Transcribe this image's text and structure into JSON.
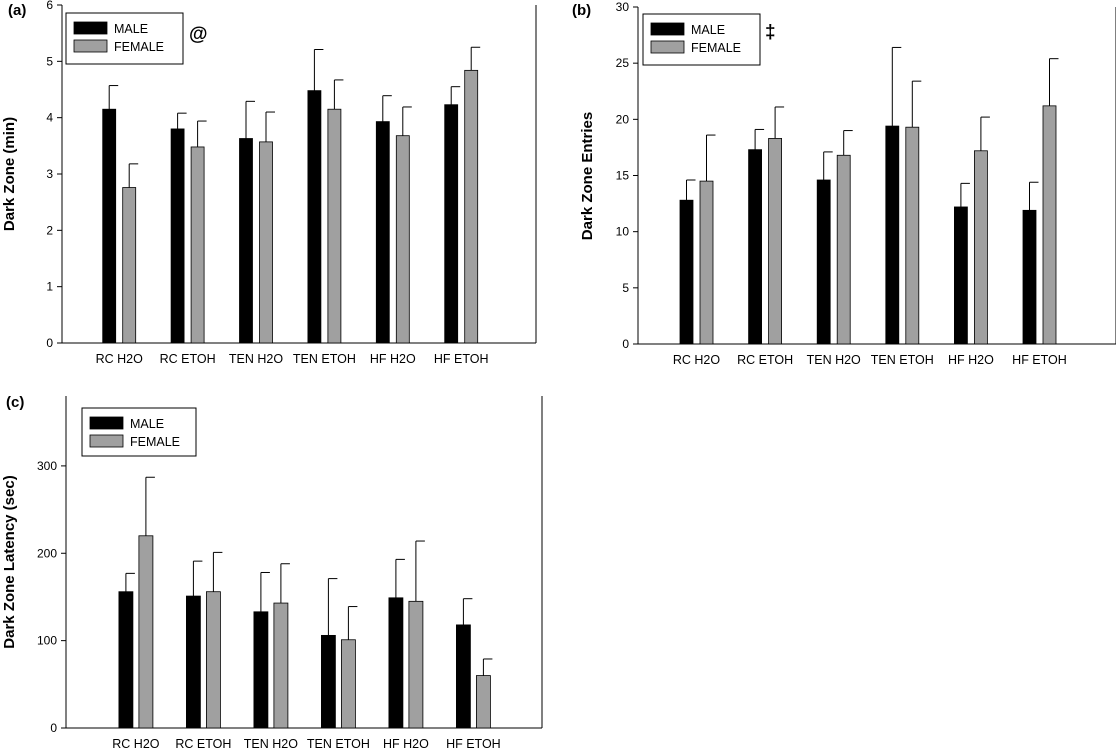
{
  "chart_data": [
    {
      "type": "bar",
      "panel_label": "(a)",
      "ylabel": "Dark Zone (min)",
      "ylim": [
        0,
        6
      ],
      "yticks": [
        0,
        1,
        2,
        3,
        4,
        5,
        6
      ],
      "categories": [
        "RC H2O",
        "RC ETOH",
        "TEN H2O",
        "TEN ETOH",
        "HF H2O",
        "HF ETOH"
      ],
      "series": [
        {
          "name": "MALE",
          "color": "#000000",
          "values": [
            4.15,
            3.8,
            3.63,
            4.48,
            3.93,
            4.23
          ],
          "errors": [
            0.42,
            0.28,
            0.66,
            0.73,
            0.46,
            0.32
          ]
        },
        {
          "name": "FEMALE",
          "color": "#a0a0a0",
          "values": [
            2.76,
            3.48,
            3.57,
            4.15,
            3.68,
            4.84
          ],
          "errors": [
            0.42,
            0.46,
            0.53,
            0.52,
            0.51,
            0.41
          ]
        }
      ],
      "annotation": "@",
      "legend_position": "top-left"
    },
    {
      "type": "bar",
      "panel_label": "(b)",
      "ylabel": "Dark Zone Entries",
      "ylim": [
        0,
        30
      ],
      "yticks": [
        0,
        5,
        10,
        15,
        20,
        25,
        30
      ],
      "categories": [
        "RC H2O",
        "RC ETOH",
        "TEN H2O",
        "TEN ETOH",
        "HF H2O",
        "HF ETOH"
      ],
      "series": [
        {
          "name": "MALE",
          "color": "#000000",
          "values": [
            12.8,
            17.3,
            14.6,
            19.4,
            12.2,
            11.9
          ],
          "errors": [
            1.8,
            1.8,
            2.5,
            7.0,
            2.1,
            2.5
          ]
        },
        {
          "name": "FEMALE",
          "color": "#a0a0a0",
          "values": [
            14.5,
            18.3,
            16.8,
            19.3,
            17.2,
            21.2
          ],
          "errors": [
            4.1,
            2.8,
            2.2,
            4.1,
            3.0,
            4.2
          ]
        }
      ],
      "annotation": "‡",
      "legend_position": "top-left"
    },
    {
      "type": "bar",
      "panel_label": "(c)",
      "ylabel": "Dark Zone Latency (sec)",
      "ylim": [
        0,
        380
      ],
      "yticks": [
        0,
        100,
        200,
        300
      ],
      "categories": [
        "RC H2O",
        "RC ETOH",
        "TEN H2O",
        "TEN ETOH",
        "HF H2O",
        "HF ETOH"
      ],
      "series": [
        {
          "name": "MALE",
          "color": "#000000",
          "values": [
            156,
            151,
            133,
            106,
            149,
            118
          ],
          "errors": [
            21,
            40,
            45,
            65,
            44,
            30
          ]
        },
        {
          "name": "FEMALE",
          "color": "#a0a0a0",
          "values": [
            220,
            156,
            143,
            101,
            145,
            60
          ],
          "errors": [
            67,
            45,
            45,
            38,
            69,
            19
          ]
        }
      ],
      "annotation": "",
      "legend_position": "top-left"
    }
  ]
}
